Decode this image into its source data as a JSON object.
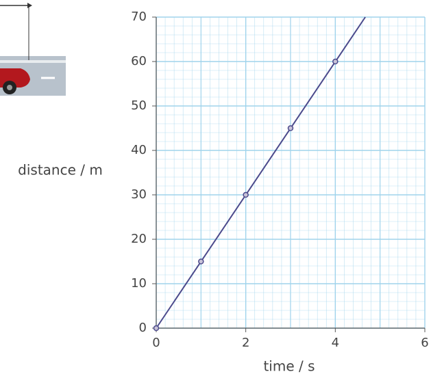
{
  "chart_data": {
    "type": "scatter",
    "x_label": "time / s",
    "y_label": "distance / m",
    "series": [
      {
        "type": "line",
        "color": "#4b4a8c",
        "x": [
          0,
          4.67
        ],
        "values": [
          0,
          70
        ]
      },
      {
        "type": "scatter",
        "color": "#4b4a8c",
        "x": [
          0,
          1,
          2,
          3,
          4
        ],
        "values": [
          0,
          15,
          30,
          45,
          60
        ]
      }
    ],
    "xlim": [
      0,
      6
    ],
    "xticks": [
      0,
      2,
      4,
      6
    ],
    "ylim": [
      0,
      70
    ],
    "yticks": [
      0,
      10,
      20,
      30,
      40,
      50,
      60,
      70
    ],
    "grid": true,
    "grid_color": "#9fd3ec"
  }
}
